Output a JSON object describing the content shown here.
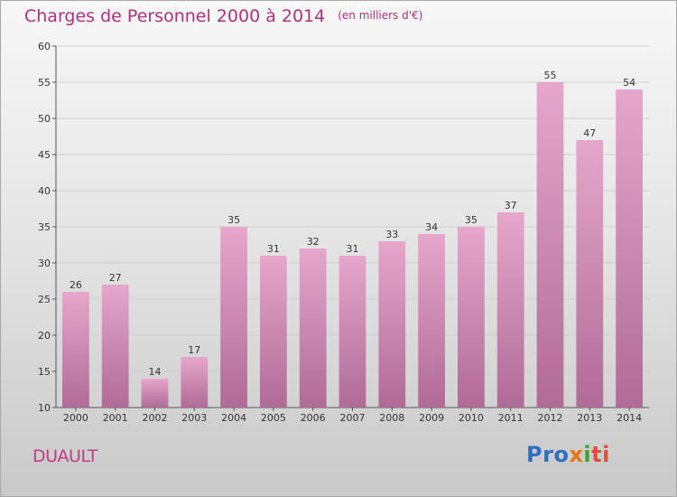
{
  "header": {
    "title": "Charges de Personnel 2000 à 2014",
    "subtitle": "(en milliers d'€)"
  },
  "footer": {
    "commune": "DUAULT",
    "logo_text": "Proxiti"
  },
  "colors": {
    "title": "#b0307a",
    "bar_top": "#e6a7cb",
    "bar_bottom": "#b06b97",
    "logo": [
      "#2f6fc0",
      "#2f6fc0",
      "#2f6fc0",
      "#e8741a",
      "#3aa536",
      "#e84b3c",
      "#e84b3c"
    ]
  },
  "chart_data": {
    "type": "bar",
    "title": "Charges de Personnel 2000 à 2014",
    "subtitle": "(en milliers d'€)",
    "xlabel": "",
    "ylabel": "",
    "categories": [
      "2000",
      "2001",
      "2002",
      "2003",
      "2004",
      "2005",
      "2006",
      "2007",
      "2008",
      "2009",
      "2010",
      "2011",
      "2012",
      "2013",
      "2014"
    ],
    "values": [
      26,
      27,
      14,
      17,
      35,
      31,
      32,
      31,
      33,
      34,
      35,
      37,
      55,
      47,
      54
    ],
    "ylim": [
      10,
      60
    ],
    "yticks": [
      10,
      15,
      20,
      25,
      30,
      35,
      40,
      45,
      50,
      55,
      60
    ],
    "grid": true,
    "legend": "none",
    "data_labels": true
  }
}
